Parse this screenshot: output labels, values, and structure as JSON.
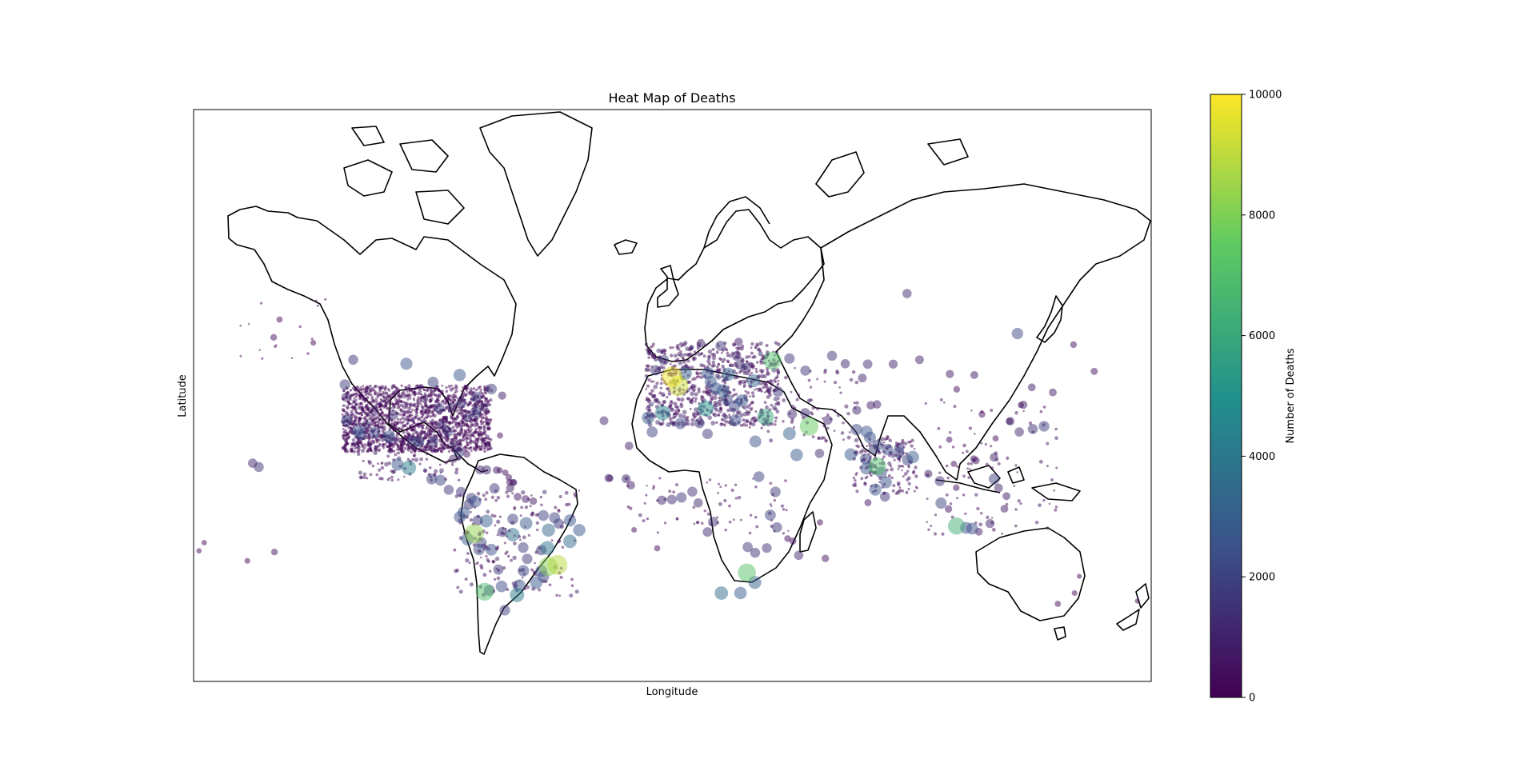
{
  "chart_data": {
    "type": "scatter",
    "title": "Heat Map of Deaths",
    "xlabel": "Longitude",
    "ylabel": "Latitude",
    "colorbar": {
      "label": "Number of Deaths",
      "range": [
        0,
        10000
      ],
      "ticks": [
        "0",
        "2000",
        "4000",
        "6000",
        "8000",
        "10000"
      ],
      "colormap": "viridis",
      "stops": [
        "#440154",
        "#3b528b",
        "#21918c",
        "#5ec962",
        "#fde725"
      ]
    },
    "projection": "mercator",
    "lon_range": [
      -180,
      180
    ],
    "lat_range": [
      -60,
      85
    ],
    "marker_alpha": 0.5,
    "point_fields": [
      "lon",
      "lat",
      "deaths"
    ],
    "points": [
      [
        -0.1,
        51.5,
        9800
      ],
      [
        2.3,
        48.9,
        9200
      ],
      [
        -74.5,
        -9.5,
        8300
      ],
      [
        -43.2,
        -22.9,
        8900
      ],
      [
        -46.6,
        -23.5,
        8200
      ],
      [
        28.0,
        -26.0,
        7200
      ],
      [
        -70.6,
        -33.4,
        7000
      ],
      [
        51.4,
        35.7,
        7600
      ],
      [
        37.6,
        55.8,
        7100
      ],
      [
        77.0,
        20.0,
        6900
      ],
      [
        106.8,
        -6.2,
        6300
      ],
      [
        35.0,
        39.0,
        5900
      ],
      [
        12.5,
        41.9,
        5100
      ],
      [
        -3.7,
        40.4,
        4500
      ],
      [
        -99.1,
        19.4,
        4200
      ],
      [
        -58.4,
        -34.6,
        4100
      ],
      [
        -47.0,
        -15.8,
        3900
      ],
      [
        -60.0,
        -10.0,
        3500
      ],
      [
        -38.5,
        -12.9,
        3400
      ],
      [
        -46.6,
        -8.0,
        3200
      ],
      [
        -70.0,
        -4.0,
        3000
      ],
      [
        -55.0,
        -5.0,
        2900
      ],
      [
        -118.2,
        34.1,
        2500
      ],
      [
        -112.0,
        33.4,
        2200
      ],
      [
        -95.4,
        29.8,
        2100
      ],
      [
        -80.2,
        25.8,
        1800
      ],
      [
        -100.0,
        55.0,
        2600
      ],
      [
        -80.0,
        52.0,
        2700
      ],
      [
        -123.1,
        49.3,
        1800
      ],
      [
        -74.1,
        4.7,
        2500
      ],
      [
        -66.9,
        10.5,
        1700
      ],
      [
        -78.5,
        -0.2,
        2600
      ],
      [
        -77.0,
        -12.0,
        2800
      ],
      [
        -68.1,
        -16.5,
        2400
      ],
      [
        -56.0,
        -25.3,
        2200
      ],
      [
        -64.2,
        -31.4,
        2300
      ],
      [
        -57.5,
        -31.0,
        2500
      ],
      [
        -103.3,
        20.7,
        2600
      ],
      [
        -87.2,
        14.1,
        2000
      ],
      [
        -90.5,
        14.6,
        1900
      ],
      [
        -84.1,
        9.9,
        1500
      ],
      [
        -79.5,
        9.0,
        1500
      ],
      [
        -69.9,
        18.5,
        1200
      ],
      [
        -72.3,
        18.5,
        1100
      ],
      [
        -82.4,
        23.1,
        900
      ],
      [
        4.9,
        52.4,
        3000
      ],
      [
        13.4,
        52.5,
        2700
      ],
      [
        21.0,
        52.2,
        3200
      ],
      [
        30.5,
        50.4,
        3100
      ],
      [
        19.0,
        47.5,
        3000
      ],
      [
        14.4,
        50.1,
        2600
      ],
      [
        16.4,
        48.2,
        2500
      ],
      [
        26.1,
        44.4,
        2800
      ],
      [
        23.3,
        42.7,
        2200
      ],
      [
        20.5,
        44.8,
        2100
      ],
      [
        23.7,
        37.9,
        2400
      ],
      [
        18.1,
        59.3,
        1600
      ],
      [
        10.7,
        59.9,
        900
      ],
      [
        24.9,
        60.2,
        900
      ],
      [
        24.1,
        56.9,
        1200
      ],
      [
        25.3,
        54.7,
        1300
      ],
      [
        27.6,
        53.9,
        1500
      ],
      [
        -9.1,
        38.7,
        2900
      ],
      [
        -6.3,
        53.3,
        1700
      ],
      [
        -3.2,
        55.9,
        1600
      ],
      [
        44.0,
        33.0,
        3000
      ],
      [
        46.7,
        24.7,
        2800
      ],
      [
        55.3,
        25.3,
        1200
      ],
      [
        69.2,
        34.5,
        2200
      ],
      [
        73.0,
        33.7,
        2600
      ],
      [
        67.0,
        24.9,
        2700
      ],
      [
        74.3,
        31.5,
        2500
      ],
      [
        90.4,
        23.8,
        2800
      ],
      [
        80.3,
        13.1,
        2400
      ],
      [
        72.9,
        19.1,
        2600
      ],
      [
        85.3,
        27.7,
        1500
      ],
      [
        101.0,
        4.0,
        2100
      ],
      [
        121.0,
        14.6,
        2000
      ],
      [
        100.5,
        13.7,
        1500
      ],
      [
        139.7,
        35.7,
        1800
      ],
      [
        135.5,
        34.7,
        1500
      ],
      [
        130.4,
        33.6,
        1200
      ],
      [
        127.0,
        37.5,
        900
      ],
      [
        31.2,
        30.0,
        2500
      ],
      [
        3.0,
        36.7,
        2200
      ],
      [
        -7.6,
        33.6,
        2000
      ],
      [
        10.2,
        36.8,
        1600
      ],
      [
        13.2,
        32.9,
        1700
      ],
      [
        32.5,
        15.6,
        1900
      ],
      [
        38.7,
        9.0,
        1800
      ],
      [
        36.8,
        -1.3,
        2000
      ],
      [
        39.3,
        -6.8,
        1600
      ],
      [
        3.4,
        6.5,
        1700
      ],
      [
        7.5,
        9.1,
        1500
      ],
      [
        -0.2,
        5.6,
        1400
      ],
      [
        -17.4,
        14.7,
        1100
      ],
      [
        -15.6,
        11.9,
        900
      ],
      [
        -4.0,
        5.3,
        1200
      ],
      [
        9.7,
        4.1,
        1200
      ],
      [
        15.3,
        -4.3,
        1500
      ],
      [
        13.2,
        -8.8,
        1300
      ],
      [
        28.3,
        -15.4,
        1600
      ],
      [
        31.1,
        -17.8,
        1500
      ],
      [
        35.5,
        -15.8,
        1400
      ],
      [
        47.5,
        -18.9,
        1200
      ],
      [
        18.4,
        -33.9,
        3400
      ],
      [
        31.0,
        -29.9,
        3000
      ],
      [
        25.6,
        -33.9,
        2800
      ],
      [
        -155.5,
        19.7,
        1500
      ],
      [
        -157.8,
        21.3,
        1200
      ],
      [
        -149.9,
        61.2,
        400
      ],
      [
        -147.7,
        64.8,
        300
      ],
      [
        -135.0,
        60.0,
        200
      ],
      [
        -120.0,
        56.0,
        1500
      ],
      [
        -90.0,
        50.0,
        2000
      ],
      [
        -68.0,
        48.0,
        1800
      ],
      [
        -64.0,
        46.0,
        800
      ],
      [
        60.0,
        57.0,
        1500
      ],
      [
        65.0,
        55.0,
        1200
      ],
      [
        73.4,
        54.9,
        1300
      ],
      [
        83.0,
        54.9,
        1100
      ],
      [
        92.9,
        56.0,
        1000
      ],
      [
        104.3,
        52.3,
        800
      ],
      [
        113.5,
        52.0,
        700
      ],
      [
        131.9,
        43.1,
        800
      ],
      [
        135.1,
        48.5,
        700
      ],
      [
        129.7,
        62.0,
        2200
      ],
      [
        150.8,
        59.6,
        400
      ],
      [
        158.6,
        53.0,
        500
      ],
      [
        143.0,
        47.0,
        700
      ],
      [
        88.2,
        69.3,
        1200
      ],
      [
        50.0,
        53.2,
        1600
      ],
      [
        44.0,
        56.3,
        1700
      ],
      [
        39.7,
        47.2,
        1700
      ],
      [
        45.0,
        40.0,
        1400
      ],
      [
        49.9,
        40.4,
        1400
      ],
      [
        58.4,
        37.9,
        1200
      ],
      [
        69.3,
        41.3,
        1100
      ],
      [
        74.6,
        42.9,
        900
      ],
      [
        76.9,
        43.2,
        900
      ],
      [
        71.4,
        51.2,
        1000
      ],
      [
        106.9,
        47.9,
        400
      ],
      [
        116.4,
        39.9,
        400
      ],
      [
        121.5,
        31.2,
        300
      ],
      [
        114.1,
        22.4,
        600
      ],
      [
        113.3,
        23.1,
        500
      ],
      [
        104.1,
        30.7,
        300
      ],
      [
        106.7,
        10.8,
        400
      ],
      [
        105.8,
        21.0,
        300
      ],
      [
        96.2,
        16.8,
        800
      ],
      [
        103.8,
        1.4,
        600
      ],
      [
        110.4,
        -7.0,
        2400
      ],
      [
        112.7,
        -7.3,
        2400
      ],
      [
        115.2,
        -8.7,
        700
      ],
      [
        119.4,
        -5.1,
        1100
      ],
      [
        124.8,
        1.5,
        700
      ],
      [
        122.6,
        10.7,
        1000
      ],
      [
        125.6,
        7.1,
        700
      ],
      [
        151.2,
        -33.9,
        200
      ],
      [
        144.9,
        -37.8,
        300
      ],
      [
        153.0,
        -27.5,
        100
      ],
      [
        174.8,
        -36.8,
        100
      ],
      [
        -159.8,
        -21.2,
        200
      ],
      [
        -149.6,
        -17.5,
        400
      ],
      [
        -178.0,
        -17.0,
        150
      ],
      [
        -176.0,
        -13.5,
        150
      ],
      [
        -24.0,
        15.0,
        800
      ],
      [
        -23.5,
        14.9,
        500
      ],
      [
        -16.3,
        28.3,
        900
      ],
      [
        -25.7,
        37.7,
        1000
      ],
      [
        -60.0,
        13.0,
        500
      ],
      [
        -61.5,
        15.3,
        400
      ],
      [
        -61.2,
        13.2,
        400
      ],
      [
        -59.6,
        13.1,
        400
      ],
      [
        -62.8,
        17.3,
        300
      ],
      [
        -64.9,
        18.3,
        300
      ],
      [
        -66.1,
        18.4,
        600
      ],
      [
        -77.3,
        25.0,
        500
      ],
      [
        -64.8,
        32.3,
        300
      ],
      [
        73.5,
        4.2,
        500
      ],
      [
        55.5,
        -4.6,
        300
      ],
      [
        57.5,
        -20.2,
        600
      ],
      [
        45.3,
        -12.8,
        500
      ],
      [
        43.3,
        -11.7,
        400
      ],
      [
        -5.7,
        -15.9,
        300
      ],
      [
        -14.4,
        -7.9,
        200
      ],
      [
        -52.3,
        4.9,
        600
      ],
      [
        -55.2,
        5.8,
        700
      ],
      [
        -58.2,
        6.8,
        700
      ],
      [
        -61.0,
        10.6,
        800
      ],
      [
        -63.0,
        -40.0,
        1800
      ],
      [
        -68.8,
        -32.9,
        2000
      ],
      [
        -65.4,
        -24.8,
        1600
      ],
      [
        -72.7,
        -16.4,
        2200
      ],
      [
        -71.9,
        -13.5,
        2000
      ],
      [
        -73.2,
        -3.7,
        1600
      ],
      [
        -75.6,
        6.2,
        1800
      ],
      [
        -76.5,
        3.4,
        1700
      ],
      [
        -79.9,
        -2.2,
        2400
      ],
      [
        -51.2,
        -30.0,
        2700
      ],
      [
        -49.3,
        -25.4,
        2500
      ],
      [
        -48.5,
        -27.6,
        2200
      ],
      [
        -35.0,
        -8.0,
        2700
      ],
      [
        -38.5,
        -3.7,
        2600
      ],
      [
        -44.3,
        -2.5,
        2000
      ],
      [
        -48.5,
        -1.5,
        1900
      ],
      [
        -60.0,
        -3.1,
        1900
      ],
      [
        -63.9,
        -8.8,
        1500
      ],
      [
        -56.1,
        -15.6,
        1800
      ],
      [
        -54.6,
        -20.4,
        1700
      ],
      [
        -49.3,
        -16.7,
        1700
      ],
      [
        -42.8,
        -5.1,
        1600
      ],
      [
        120.9,
        23.7,
        900
      ],
      [
        126.7,
        37.5,
        500
      ],
      [
        131.0,
        43.0,
        300
      ],
      [
        77.2,
        28.6,
        2000
      ],
      [
        80.9,
        26.8,
        2200
      ],
      [
        85.1,
        25.6,
        2100
      ],
      [
        88.4,
        22.6,
        2000
      ],
      [
        78.5,
        17.4,
        2300
      ],
      [
        75.8,
        26.9,
        1800
      ],
      [
        72.6,
        23.0,
        2100
      ],
      [
        76.3,
        10.0,
        2600
      ],
      [
        79.9,
        6.9,
        1500
      ],
      [
        -104.9,
        39.7,
        1500
      ],
      [
        -122.4,
        37.8,
        2100
      ],
      [
        -122.7,
        45.5,
        1200
      ],
      [
        -117.2,
        32.7,
        2300
      ],
      [
        -106.5,
        31.8,
        2700
      ],
      [
        -111.9,
        40.8,
        900
      ],
      [
        -115.1,
        36.2,
        1300
      ],
      [
        -97.7,
        30.3,
        1600
      ],
      [
        -90.1,
        29.9,
        1800
      ],
      [
        -84.4,
        33.7,
        1600
      ],
      [
        -77.0,
        38.9,
        1400
      ],
      [
        -73.9,
        40.7,
        2000
      ],
      [
        -87.6,
        41.9,
        1700
      ],
      [
        -83.0,
        42.3,
        1200
      ],
      [
        -93.3,
        45.0,
        800
      ],
      [
        -71.1,
        42.4,
        1000
      ],
      [
        -79.4,
        43.7,
        1500
      ],
      [
        -73.6,
        45.5,
        1700
      ],
      [
        -81.7,
        28.5,
        1100
      ],
      [
        -86.8,
        36.2,
        1300
      ]
    ],
    "cluster_fields": [
      "lon_min",
      "lon_max",
      "lat_min",
      "lat_max",
      "count",
      "deaths_max"
    ],
    "clusters": [
      [
        -124,
        -68,
        26,
        49,
        1800,
        700
      ],
      [
        -10,
        40,
        36,
        60,
        700,
        1600
      ],
      [
        -118,
        -80,
        14,
        32,
        120,
        1300
      ],
      [
        -82,
        -35,
        -35,
        10,
        180,
        1200
      ],
      [
        68,
        92,
        8,
        32,
        160,
        1000
      ],
      [
        -18,
        45,
        -10,
        15,
        70,
        800
      ],
      [
        95,
        145,
        -10,
        45,
        90,
        700
      ],
      [
        28,
        70,
        30,
        55,
        80,
        900
      ],
      [
        -165,
        -130,
        55,
        70,
        15,
        200
      ]
    ]
  }
}
